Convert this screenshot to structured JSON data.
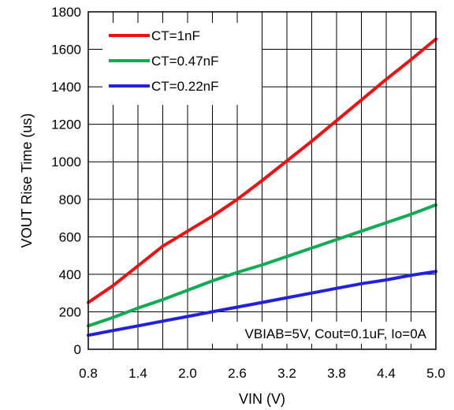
{
  "chart_data": {
    "type": "line",
    "xlabel": "VIN (V)",
    "ylabel": "VOUT Rise Time (us)",
    "xlim": [
      0.8,
      5.0
    ],
    "ylim": [
      0,
      1800
    ],
    "xticks": [
      0.8,
      1.4,
      2.0,
      2.6,
      3.2,
      3.8,
      4.4,
      5.0
    ],
    "xtick_labels": [
      "0.8",
      "1.4",
      "2.0",
      "2.6",
      "3.2",
      "3.8",
      "4.4",
      "5.0"
    ],
    "yticks": [
      0,
      200,
      400,
      600,
      800,
      1000,
      1200,
      1400,
      1600,
      1800
    ],
    "ytick_labels": [
      "0",
      "200",
      "400",
      "600",
      "800",
      "1000",
      "1200",
      "1400",
      "1600",
      "1800"
    ],
    "grid": true,
    "legend_position": "top-left",
    "annotation": "VBIAB=5V, Cout=0.1uF, Io=0A",
    "series": [
      {
        "name": "CT=1nF",
        "color": "#ee1111",
        "x": [
          0.8,
          1.1,
          1.4,
          1.7,
          2.0,
          2.3,
          2.6,
          2.9,
          3.2,
          3.5,
          3.8,
          4.1,
          4.4,
          4.7,
          5.0
        ],
        "y": [
          250,
          340,
          445,
          550,
          630,
          710,
          800,
          900,
          1005,
          1110,
          1220,
          1330,
          1440,
          1545,
          1655
        ]
      },
      {
        "name": "CT=0.47nF",
        "color": "#11aa55",
        "x": [
          0.8,
          1.1,
          1.4,
          1.7,
          2.0,
          2.3,
          2.6,
          2.9,
          3.2,
          3.5,
          3.8,
          4.1,
          4.4,
          4.7,
          5.0
        ],
        "y": [
          125,
          170,
          220,
          265,
          315,
          365,
          410,
          450,
          495,
          540,
          585,
          630,
          675,
          720,
          770
        ]
      },
      {
        "name": "CT=0.22nF",
        "color": "#2222dd",
        "x": [
          0.8,
          1.1,
          1.4,
          1.7,
          2.0,
          2.3,
          2.6,
          2.9,
          3.2,
          3.5,
          3.8,
          4.1,
          4.4,
          4.7,
          5.0
        ],
        "y": [
          75,
          100,
          125,
          150,
          175,
          200,
          225,
          250,
          275,
          300,
          325,
          350,
          370,
          395,
          415
        ]
      }
    ]
  }
}
